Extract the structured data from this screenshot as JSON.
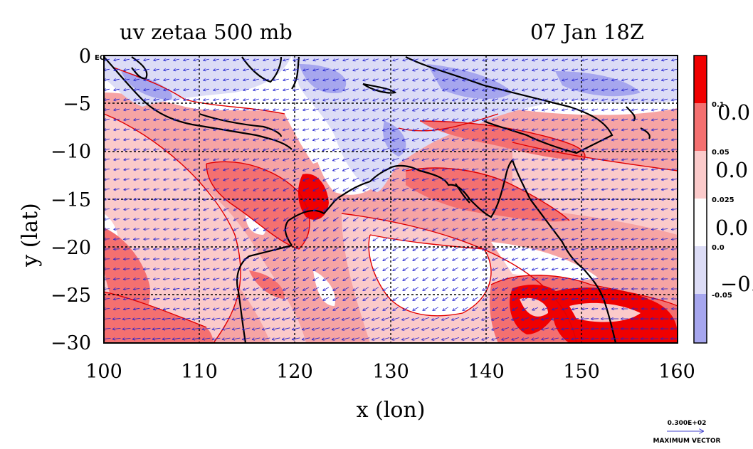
{
  "title_left": "uv zetaa 500 mb",
  "title_right": "07 Jan 18Z",
  "x_axis": {
    "label": "x (lon)",
    "ticks": [
      "100",
      "110",
      "120",
      "130",
      "140",
      "150",
      "160"
    ],
    "range": [
      100,
      160
    ]
  },
  "y_axis": {
    "label": "y (lat)",
    "ticks": [
      "0",
      "−5",
      "−10",
      "−15",
      "−20",
      "−25",
      "−30"
    ],
    "range": [
      -30,
      0
    ]
  },
  "corner_label": "EQ",
  "colorbar": {
    "colors": [
      "#f00000",
      "#f47070",
      "#fbcaca",
      "#ffffff",
      "#dcdcf6",
      "#a6a6ee"
    ],
    "small_labels": [
      "0.1",
      "0.05",
      "0.025",
      "0.0",
      "-0.05"
    ],
    "big_labels": [
      "0.0",
      "0.0",
      "0.0",
      "−0."
    ]
  },
  "reference_vector": {
    "value": "0.300E+02",
    "caption": "MAXIMUM VECTOR"
  },
  "colors": {
    "vector": "#1f1fd0",
    "coast": "#000000",
    "contour": "#e00000"
  }
}
